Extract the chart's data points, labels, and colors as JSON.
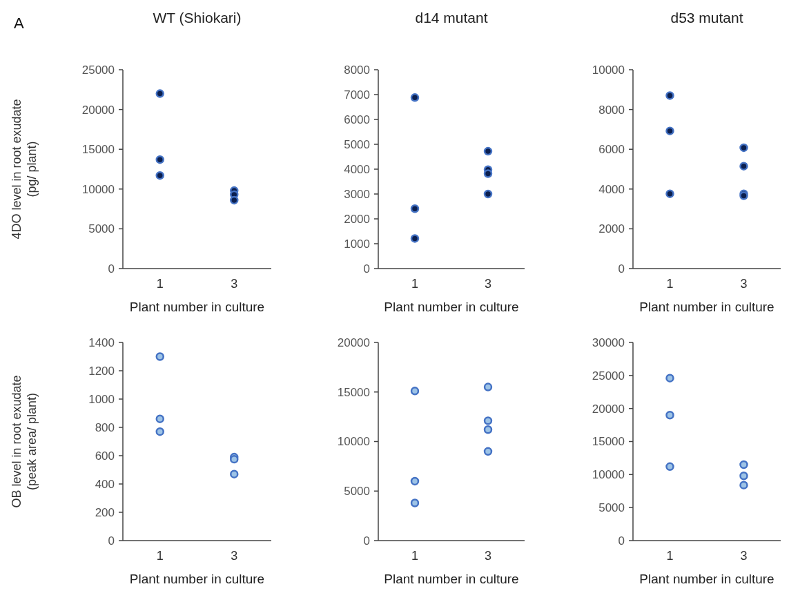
{
  "chart_data": [
    {
      "type": "scatter",
      "title": "WT (Shiokari)",
      "ylabel": "4DO level  in root exudate\n(pg/ plant)",
      "xlabel": "Plant number in culture",
      "annotations": [
        "A"
      ],
      "categories": [
        "1",
        "3"
      ],
      "ylim": [
        0,
        25000
      ],
      "yticks": [
        0,
        5000,
        10000,
        15000,
        20000,
        25000
      ],
      "marker": "circle",
      "series": [
        {
          "color": "#0b1f4f",
          "x": [
            "1",
            "1",
            "1",
            "3",
            "3",
            "3"
          ],
          "values": [
            22000,
            13700,
            11700,
            9800,
            9300,
            8600
          ]
        }
      ]
    },
    {
      "type": "scatter",
      "title": "d14 mutant",
      "xlabel": "Plant number in culture",
      "categories": [
        "1",
        "3"
      ],
      "ylim": [
        0,
        8000
      ],
      "yticks": [
        0,
        1000,
        2000,
        3000,
        4000,
        5000,
        6000,
        7000,
        8000
      ],
      "marker": "circle",
      "series": [
        {
          "color": "#0b1f4f",
          "x": [
            "1",
            "1",
            "1",
            "3",
            "3",
            "3",
            "3"
          ],
          "values": [
            6880,
            2410,
            1210,
            4720,
            3980,
            3820,
            3000
          ]
        }
      ]
    },
    {
      "type": "scatter",
      "title": "d53 mutant",
      "xlabel": "Plant number in culture",
      "categories": [
        "1",
        "3"
      ],
      "ylim": [
        0,
        10000
      ],
      "yticks": [
        0,
        2000,
        4000,
        6000,
        8000,
        10000
      ],
      "marker": "circle",
      "series": [
        {
          "color": "#0b1f4f",
          "x": [
            "1",
            "1",
            "1",
            "3",
            "3",
            "3",
            "3"
          ],
          "values": [
            8700,
            6920,
            3760,
            6080,
            5150,
            3760,
            3660
          ]
        }
      ]
    },
    {
      "type": "scatter",
      "ylabel": "OB level in root exudate\n(peak area/ plant)",
      "xlabel": "Plant number in culture",
      "categories": [
        "1",
        "3"
      ],
      "ylim": [
        0,
        1400
      ],
      "yticks": [
        0,
        200,
        400,
        600,
        800,
        1000,
        1200,
        1400
      ],
      "marker": "circle",
      "series": [
        {
          "color": "#9dc3e6",
          "x": [
            "1",
            "1",
            "1",
            "3",
            "3",
            "3"
          ],
          "values": [
            1300,
            860,
            770,
            590,
            575,
            470
          ]
        }
      ]
    },
    {
      "type": "scatter",
      "xlabel": "Plant number in culture",
      "categories": [
        "1",
        "3"
      ],
      "ylim": [
        0,
        20000
      ],
      "yticks": [
        0,
        5000,
        10000,
        15000,
        20000
      ],
      "marker": "circle",
      "series": [
        {
          "color": "#9dc3e6",
          "x": [
            "1",
            "1",
            "1",
            "3",
            "3",
            "3",
            "3"
          ],
          "values": [
            15100,
            6000,
            3800,
            15500,
            12100,
            11200,
            9000
          ]
        }
      ]
    },
    {
      "type": "scatter",
      "xlabel": "Plant number in culture",
      "categories": [
        "1",
        "3"
      ],
      "ylim": [
        0,
        30000
      ],
      "yticks": [
        0,
        5000,
        10000,
        15000,
        20000,
        25000,
        30000
      ],
      "marker": "circle",
      "series": [
        {
          "color": "#9dc3e6",
          "x": [
            "1",
            "1",
            "1",
            "3",
            "3",
            "3"
          ],
          "values": [
            24600,
            19000,
            11200,
            11500,
            9800,
            8400
          ]
        }
      ]
    }
  ]
}
